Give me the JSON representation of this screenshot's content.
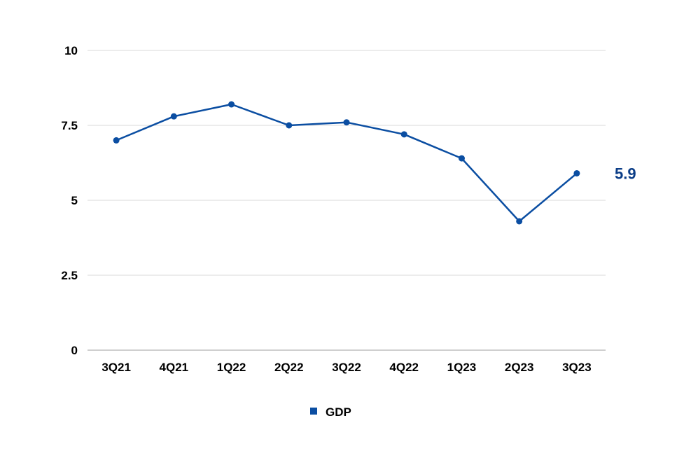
{
  "chart_data": {
    "type": "line",
    "categories": [
      "3Q21",
      "4Q21",
      "1Q22",
      "2Q22",
      "3Q22",
      "4Q22",
      "1Q23",
      "2Q23",
      "3Q23"
    ],
    "series": [
      {
        "name": "GDP",
        "values": [
          7.0,
          7.8,
          8.2,
          7.5,
          7.6,
          7.2,
          6.4,
          4.3,
          5.9
        ]
      }
    ],
    "ylim": [
      0,
      10
    ],
    "yticks": [
      0,
      2.5,
      5,
      7.5,
      10
    ],
    "ytick_labels": [
      "0",
      "2.5",
      "5",
      "7.5",
      "10"
    ],
    "grid": true,
    "legend_position": "bottom",
    "end_label": "5.9",
    "colors": {
      "series": "#0b4ea2",
      "end_label": "#0b3d87",
      "grid": "#d9d9d9",
      "axis": "#bfbfbf"
    }
  }
}
